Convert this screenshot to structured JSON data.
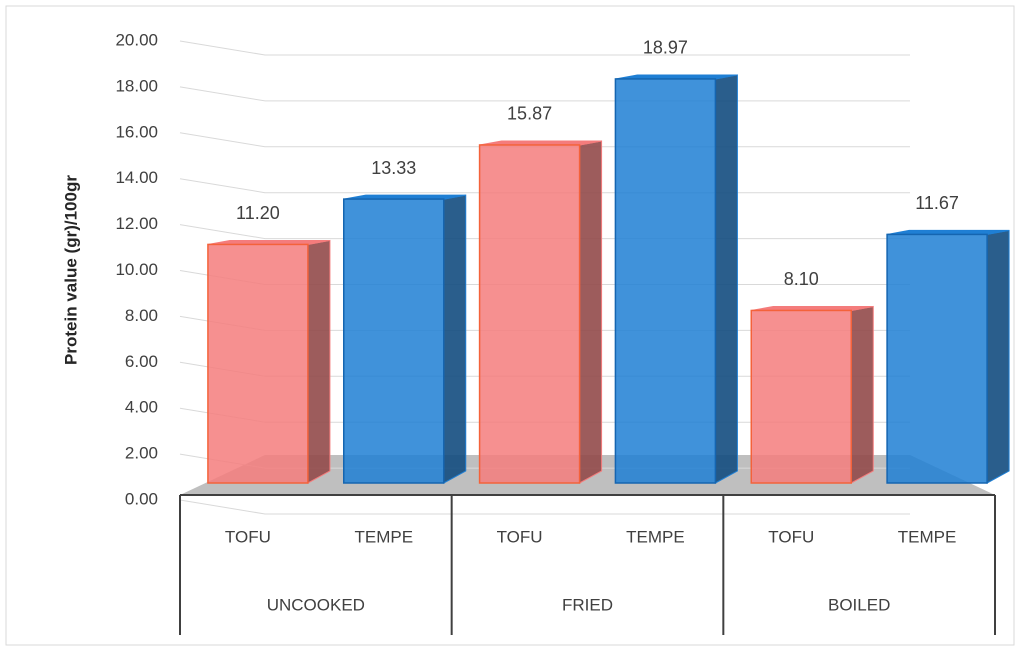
{
  "chart_data": {
    "type": "bar",
    "y_label": "Protein value (gr)/100gr",
    "categories": [
      "TOFU",
      "TEMPE",
      "TOFU",
      "TEMPE",
      "TOFU",
      "TEMPE"
    ],
    "groups": [
      "UNCOOKED",
      "FRIED",
      "BOILED"
    ],
    "values": [
      11.2,
      13.33,
      15.87,
      18.97,
      8.1,
      11.67
    ],
    "value_labels": [
      "11.20",
      "13.33",
      "15.87",
      "18.97",
      "8.10",
      "11.67"
    ],
    "colors": [
      "#f47c7c",
      "#1f7fd4",
      "#f47c7c",
      "#1f7fd4",
      "#f47c7c",
      "#1f7fd4"
    ],
    "ylim": [
      0,
      20
    ],
    "yticks": [
      {
        "value": 0,
        "label": "0.00"
      },
      {
        "value": 2,
        "label": "2.00"
      },
      {
        "value": 4,
        "label": "4.00"
      },
      {
        "value": 6,
        "label": "6.00"
      },
      {
        "value": 8,
        "label": "8.00"
      },
      {
        "value": 10,
        "label": "10.00"
      },
      {
        "value": 12,
        "label": "12.00"
      },
      {
        "value": 14,
        "label": "14.00"
      },
      {
        "value": 16,
        "label": "16.00"
      },
      {
        "value": 18,
        "label": "18.00"
      },
      {
        "value": 20,
        "label": "20.00"
      }
    ],
    "grid": true
  }
}
